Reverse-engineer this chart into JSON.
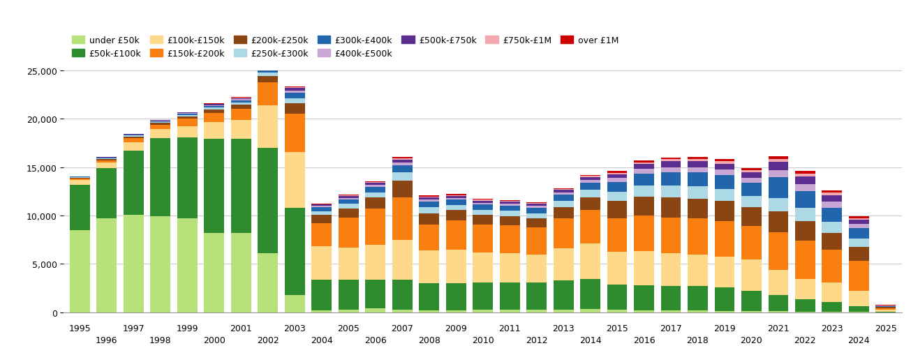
{
  "years": [
    1995,
    1996,
    1997,
    1998,
    1999,
    2000,
    2001,
    2002,
    2003,
    2004,
    2005,
    2006,
    2007,
    2008,
    2009,
    2010,
    2011,
    2012,
    2013,
    2014,
    2015,
    2016,
    2017,
    2018,
    2019,
    2020,
    2021,
    2022,
    2023,
    2024,
    2025
  ],
  "categories": [
    "under £50k",
    "£50k-£100k",
    "£100k-£150k",
    "£150k-£200k",
    "£200k-£250k",
    "£250k-£300k",
    "£300k-£400k",
    "£400k-£500k",
    "£500k-£750k",
    "£750k-£1M",
    "over £1M"
  ],
  "colors": [
    "#b7e17b",
    "#2e8b2e",
    "#ffd98a",
    "#f97f10",
    "#8b4513",
    "#add8e6",
    "#2166ac",
    "#c9a6d4",
    "#5b2d8e",
    "#f4a9b0",
    "#cc0000"
  ],
  "data": {
    "under £50k": [
      8500,
      9700,
      10100,
      9900,
      9700,
      8200,
      8200,
      6100,
      1800,
      200,
      300,
      400,
      300,
      200,
      200,
      300,
      300,
      250,
      300,
      350,
      250,
      200,
      200,
      200,
      150,
      150,
      100,
      80,
      80,
      40,
      10
    ],
    "£50k-£100k": [
      4700,
      5200,
      6600,
      8100,
      8400,
      9700,
      9700,
      10900,
      9000,
      3200,
      3100,
      3000,
      3100,
      2800,
      2800,
      2800,
      2800,
      2800,
      3000,
      3100,
      2600,
      2600,
      2500,
      2500,
      2400,
      2100,
      1700,
      1300,
      1000,
      600,
      80
    ],
    "£100k-£150k": [
      450,
      550,
      850,
      950,
      1150,
      1750,
      1950,
      4400,
      5800,
      3400,
      3300,
      3600,
      4100,
      3400,
      3500,
      3100,
      3000,
      2900,
      3300,
      3700,
      3400,
      3500,
      3400,
      3300,
      3200,
      3200,
      2600,
      2100,
      2000,
      1600,
      180
    ],
    "£150k-£200k": [
      180,
      270,
      450,
      450,
      750,
      950,
      1150,
      2400,
      3900,
      2400,
      3100,
      3700,
      4400,
      2700,
      3000,
      2900,
      2900,
      2800,
      3100,
      3400,
      3500,
      3700,
      3700,
      3700,
      3700,
      3500,
      3900,
      3900,
      3400,
      3100,
      180
    ],
    "£200k-£250k": [
      90,
      130,
      180,
      180,
      270,
      370,
      460,
      650,
      1100,
      850,
      950,
      1150,
      1700,
      1150,
      1050,
      950,
      950,
      950,
      1150,
      1350,
      1750,
      1950,
      2050,
      2050,
      2050,
      1950,
      2150,
      2050,
      1750,
      1450,
      90
    ],
    "£250k-£300k": [
      45,
      70,
      90,
      90,
      130,
      180,
      230,
      320,
      550,
      420,
      460,
      550,
      850,
      650,
      550,
      550,
      550,
      550,
      650,
      750,
      950,
      1150,
      1250,
      1250,
      1250,
      1150,
      1350,
      1350,
      1150,
      850,
      50
    ],
    "£300k-£400k": [
      45,
      70,
      90,
      90,
      130,
      180,
      230,
      320,
      550,
      370,
      460,
      550,
      750,
      550,
      550,
      550,
      550,
      550,
      650,
      750,
      1050,
      1250,
      1350,
      1450,
      1450,
      1350,
      2150,
      1750,
      1450,
      1050,
      70
    ],
    "£400k-£500k": [
      18,
      25,
      35,
      45,
      60,
      90,
      110,
      140,
      230,
      140,
      165,
      200,
      280,
      200,
      180,
      180,
      180,
      180,
      230,
      280,
      370,
      460,
      550,
      550,
      550,
      500,
      750,
      700,
      600,
      420,
      35
    ],
    "£500k-£750k": [
      18,
      25,
      35,
      45,
      60,
      90,
      120,
      155,
      260,
      145,
      180,
      230,
      320,
      240,
      220,
      220,
      220,
      220,
      260,
      300,
      415,
      505,
      600,
      625,
      625,
      570,
      830,
      800,
      690,
      460,
      35
    ],
    "£750k-£1M": [
      8,
      12,
      16,
      16,
      25,
      35,
      45,
      60,
      90,
      50,
      60,
      80,
      115,
      90,
      80,
      80,
      80,
      80,
      90,
      105,
      150,
      180,
      210,
      220,
      220,
      200,
      295,
      285,
      245,
      165,
      12
    ],
    "over £1M": [
      8,
      12,
      16,
      16,
      25,
      35,
      45,
      60,
      90,
      50,
      60,
      80,
      115,
      90,
      80,
      80,
      80,
      80,
      90,
      105,
      150,
      180,
      210,
      225,
      225,
      210,
      305,
      295,
      260,
      185,
      12
    ]
  },
  "ylim": [
    0,
    25000
  ],
  "yticks": [
    0,
    5000,
    10000,
    15000,
    20000,
    25000
  ],
  "background_color": "#ffffff",
  "grid_color": "#cccccc"
}
